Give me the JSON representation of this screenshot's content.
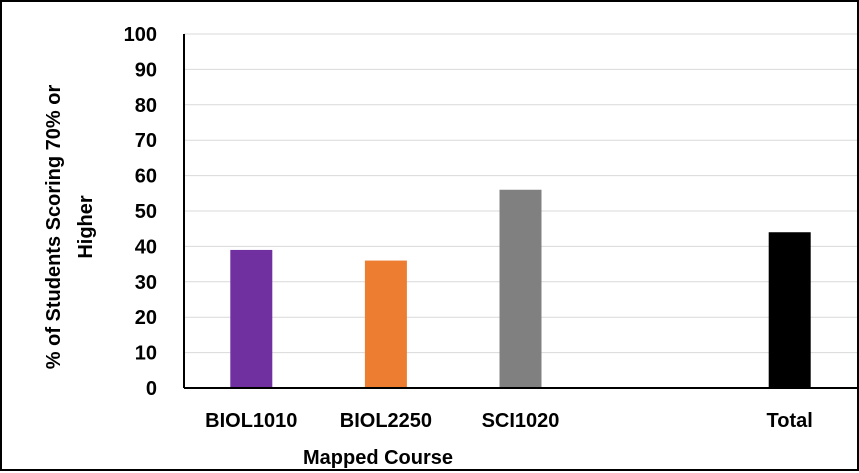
{
  "chart_data": {
    "type": "bar",
    "categories": [
      "BIOL1010",
      "BIOL2250",
      "SCI1020",
      "",
      "Total"
    ],
    "values": [
      39,
      36,
      56,
      null,
      44
    ],
    "colors": [
      "#7030a0",
      "#ed7d31",
      "#808080",
      null,
      "#000000"
    ],
    "title": "",
    "xlabel": "Mapped Course",
    "ylabel_lines": [
      "% of Students Scoring 70% or",
      "Higher"
    ],
    "ylim": [
      0,
      100
    ],
    "yticks": [
      "0",
      "10",
      "20",
      "30",
      "40",
      "50",
      "60",
      "70",
      "80",
      "90",
      "100"
    ],
    "grid": true,
    "legend": "none"
  }
}
